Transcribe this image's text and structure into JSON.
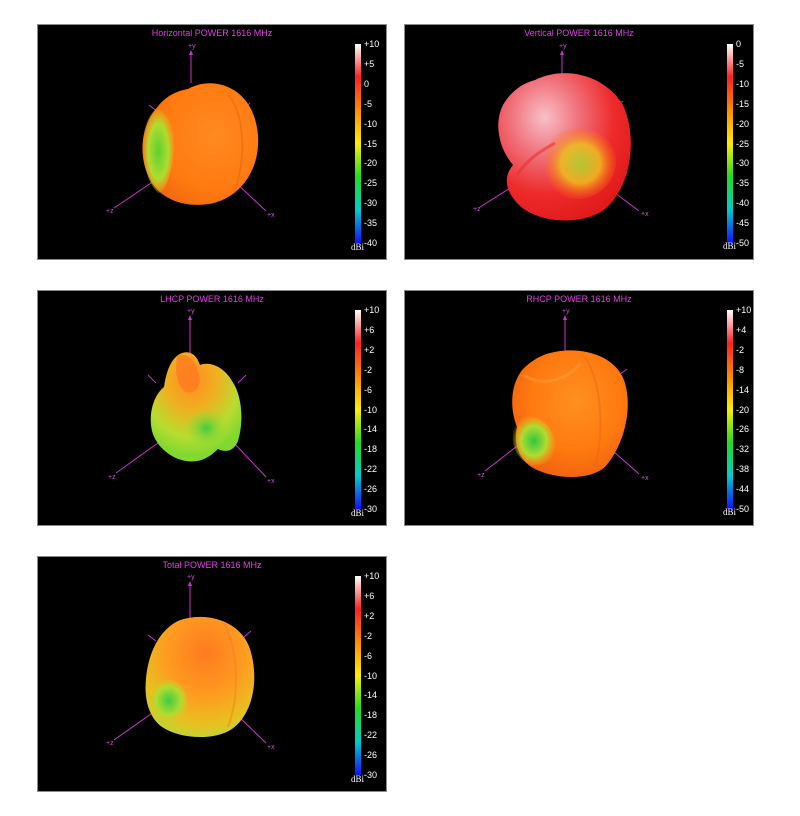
{
  "panels": [
    {
      "title": "Horizontal POWER 1616  MHz",
      "ticks": [
        "+10",
        "+5",
        "0",
        "-5",
        "-10",
        "-15",
        "-20",
        "-25",
        "-30",
        "-35",
        "-40"
      ],
      "unit": "dBi",
      "axes": {
        "y": "+y",
        "z": "+z",
        "x": "+x"
      }
    },
    {
      "title": "Vertical POWER 1616  MHz",
      "ticks": [
        "0",
        "-5",
        "-10",
        "-15",
        "-20",
        "-25",
        "-30",
        "-35",
        "-40",
        "-45",
        "-50"
      ],
      "unit": "dBi",
      "axes": {
        "y": "+y",
        "z": "+z",
        "x": "+x"
      }
    },
    {
      "title": "LHCP POWER 1616  MHz",
      "ticks": [
        "+10",
        "+6",
        "+2",
        "-2",
        "-6",
        "-10",
        "-14",
        "-18",
        "-22",
        "-26",
        "-30"
      ],
      "unit": "dBi",
      "axes": {
        "y": "+y",
        "z": "+z",
        "x": "+x"
      }
    },
    {
      "title": "RHCP POWER 1616  MHz",
      "ticks": [
        "+10",
        "+4",
        "-2",
        "-8",
        "-14",
        "-20",
        "-26",
        "-32",
        "-38",
        "-44",
        "-50"
      ],
      "unit": "dBi",
      "axes": {
        "y": "+y",
        "z": "+z",
        "x": "+x"
      }
    },
    {
      "title": "Total POWER 1616  MHz",
      "ticks": [
        "+10",
        "+6",
        "+2",
        "-2",
        "-6",
        "-10",
        "-14",
        "-18",
        "-22",
        "-26",
        "-30"
      ],
      "unit": "dBi",
      "axes": {
        "y": "+y",
        "z": "+z",
        "x": "+x"
      }
    }
  ],
  "colors": {
    "colorbar": [
      "#ffffff",
      "#ff2020",
      "#ff8c00",
      "#ffee00",
      "#20dd20",
      "#00cccc",
      "#1010ff"
    ],
    "axis": "#cc33cc",
    "title": "#e040e0"
  }
}
